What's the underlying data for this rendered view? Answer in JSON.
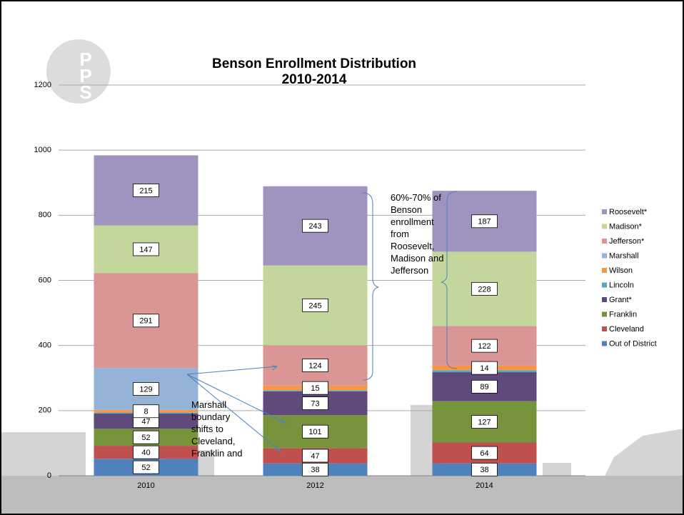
{
  "chart_data": {
    "type": "stacked_bar",
    "title": "Benson Enrollment Distribution",
    "subtitle": "2010-2014",
    "categories": [
      "2010",
      "2012",
      "2014"
    ],
    "series": [
      {
        "name": "Out of District",
        "color": "#4f81bd",
        "values": [
          52,
          38,
          38
        ]
      },
      {
        "name": "Cleveland",
        "color": "#c0504d",
        "values": [
          40,
          47,
          64
        ]
      },
      {
        "name": "Franklin",
        "color": "#77933c",
        "values": [
          52,
          101,
          127
        ]
      },
      {
        "name": "Grant*",
        "color": "#604a7b",
        "values": [
          47,
          73,
          89
        ]
      },
      {
        "name": "Lincoln",
        "color": "#4bacc6",
        "values": [
          3,
          3,
          6
        ]
      },
      {
        "name": "Wilson",
        "color": "#f79646",
        "values": [
          8,
          15,
          14
        ]
      },
      {
        "name": "Marshall",
        "color": "#95b3d7",
        "values": [
          129,
          0,
          0
        ]
      },
      {
        "name": "Jefferson*",
        "color": "#d99694",
        "values": [
          291,
          124,
          122
        ]
      },
      {
        "name": "Madison*",
        "color": "#c3d69b",
        "values": [
          147,
          245,
          228
        ]
      },
      {
        "name": "Roosevelt*",
        "color": "#a193c0",
        "values": [
          215,
          243,
          187
        ]
      }
    ],
    "ylim": [
      0,
      1200
    ],
    "yticks": [
      0,
      200,
      400,
      600,
      800,
      1000,
      1200
    ],
    "grid": true,
    "legend": "right",
    "annotations": [
      "Marshall boundary shifts to Cleveland, Franklin and",
      "60%-70% of Benson enrollment from Roosevelt, Madison and Jefferson"
    ]
  }
}
